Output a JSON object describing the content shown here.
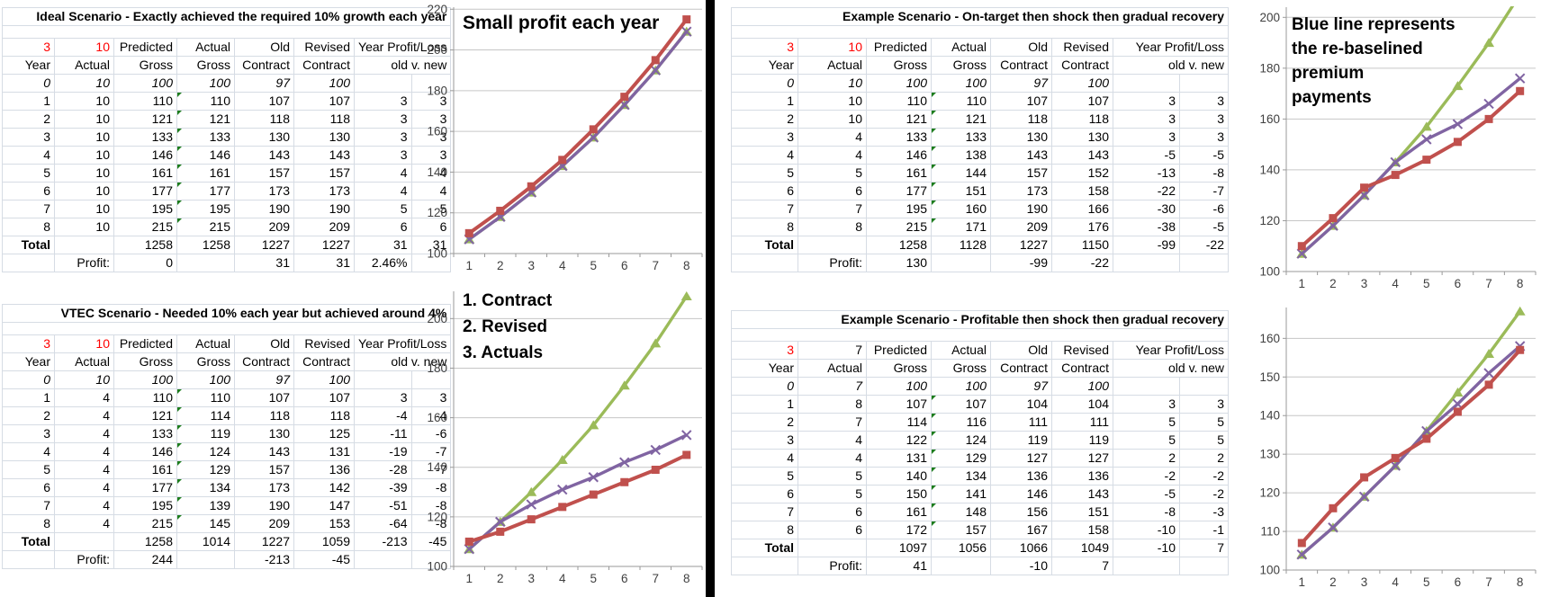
{
  "colors": {
    "actual": "#c0504d",
    "revised": "#8064a2",
    "contract": "#9bbb59",
    "red_text": "#ff0000",
    "grid": "#c6c6c6",
    "axis": "#9a9a9a"
  },
  "tables": [
    {
      "id": "ideal",
      "title": "Ideal Scenario - Exactly achieved the required 10% growth each year",
      "corner": [
        {
          "v": "3",
          "red": true
        },
        {
          "v": "10",
          "red": true
        }
      ],
      "headers": {
        "row1": [
          "Predicted",
          "Actual",
          "Old",
          "Revised",
          "Year Profit/Loss"
        ],
        "row2": [
          "Year",
          "Actual",
          "Gross",
          "Gross",
          "Contract",
          "Contract",
          "old v. new"
        ]
      },
      "rows": [
        [
          "0",
          "10",
          "100",
          "100",
          "97",
          "100",
          "",
          ""
        ],
        [
          "1",
          "10",
          "110",
          "110",
          "107",
          "107",
          "3",
          "3"
        ],
        [
          "2",
          "10",
          "121",
          "121",
          "118",
          "118",
          "3",
          "3"
        ],
        [
          "3",
          "10",
          "133",
          "133",
          "130",
          "130",
          "3",
          "3"
        ],
        [
          "4",
          "10",
          "146",
          "146",
          "143",
          "143",
          "3",
          "3"
        ],
        [
          "5",
          "10",
          "161",
          "161",
          "157",
          "157",
          "4",
          "4"
        ],
        [
          "6",
          "10",
          "177",
          "177",
          "173",
          "173",
          "4",
          "4"
        ],
        [
          "7",
          "10",
          "195",
          "195",
          "190",
          "190",
          "5",
          "5"
        ],
        [
          "8",
          "10",
          "215",
          "215",
          "209",
          "209",
          "6",
          "6"
        ]
      ],
      "total": {
        "label": "Total",
        "values": [
          "1258",
          "1258",
          "1227",
          "1227",
          "31",
          "31"
        ]
      },
      "profit": {
        "label": "Profit:",
        "predicted": "0",
        "old": "31",
        "revised": "31",
        "extra": "2.46%"
      }
    },
    {
      "id": "vtec",
      "title": "VTEC Scenario - Needed 10% each year but achieved around 4%",
      "corner": [
        {
          "v": "3",
          "red": true
        },
        {
          "v": "10",
          "red": true
        }
      ],
      "headers": {
        "row1": [
          "Predicted",
          "Actual",
          "Old",
          "Revised",
          "Year Profit/Loss"
        ],
        "row2": [
          "Year",
          "Actual",
          "Gross",
          "Gross",
          "Contract",
          "Contract",
          "old v. new"
        ]
      },
      "rows": [
        [
          "0",
          "10",
          "100",
          "100",
          "97",
          "100",
          "",
          ""
        ],
        [
          "1",
          "4",
          "110",
          "110",
          "107",
          "107",
          "3",
          "3"
        ],
        [
          "2",
          "4",
          "121",
          "114",
          "118",
          "118",
          "-4",
          "-4"
        ],
        [
          "3",
          "4",
          "133",
          "119",
          "130",
          "125",
          "-11",
          "-6"
        ],
        [
          "4",
          "4",
          "146",
          "124",
          "143",
          "131",
          "-19",
          "-7"
        ],
        [
          "5",
          "4",
          "161",
          "129",
          "157",
          "136",
          "-28",
          "-7"
        ],
        [
          "6",
          "4",
          "177",
          "134",
          "173",
          "142",
          "-39",
          "-8"
        ],
        [
          "7",
          "4",
          "195",
          "139",
          "190",
          "147",
          "-51",
          "-8"
        ],
        [
          "8",
          "4",
          "215",
          "145",
          "209",
          "153",
          "-64",
          "-8"
        ]
      ],
      "total": {
        "label": "Total",
        "values": [
          "1258",
          "1014",
          "1227",
          "1059",
          "-213",
          "-45"
        ]
      },
      "profit": {
        "label": "Profit:",
        "predicted": "244",
        "old": "-213",
        "revised": "-45",
        "extra": ""
      }
    },
    {
      "id": "ontarget-shock",
      "title": "Example Scenario - On-target then shock then gradual recovery",
      "corner": [
        {
          "v": "3",
          "red": true
        },
        {
          "v": "10",
          "red": true
        }
      ],
      "headers": {
        "row1": [
          "Predicted",
          "Actual",
          "Old",
          "Revised",
          "Year Profit/Loss"
        ],
        "row2": [
          "Year",
          "Actual",
          "Gross",
          "Gross",
          "Contract",
          "Contract",
          "old v. new"
        ]
      },
      "rows": [
        [
          "0",
          "10",
          "100",
          "100",
          "97",
          "100",
          "",
          ""
        ],
        [
          "1",
          "10",
          "110",
          "110",
          "107",
          "107",
          "3",
          "3"
        ],
        [
          "2",
          "10",
          "121",
          "121",
          "118",
          "118",
          "3",
          "3"
        ],
        [
          "3",
          "4",
          "133",
          "133",
          "130",
          "130",
          "3",
          "3"
        ],
        [
          "4",
          "4",
          "146",
          "138",
          "143",
          "143",
          "-5",
          "-5"
        ],
        [
          "5",
          "5",
          "161",
          "144",
          "157",
          "152",
          "-13",
          "-8"
        ],
        [
          "6",
          "6",
          "177",
          "151",
          "173",
          "158",
          "-22",
          "-7"
        ],
        [
          "7",
          "7",
          "195",
          "160",
          "190",
          "166",
          "-30",
          "-6"
        ],
        [
          "8",
          "8",
          "215",
          "171",
          "209",
          "176",
          "-38",
          "-5"
        ]
      ],
      "total": {
        "label": "Total",
        "values": [
          "1258",
          "1128",
          "1227",
          "1150",
          "-99",
          "-22"
        ]
      },
      "profit": {
        "label": "Profit:",
        "predicted": "130",
        "old": "-99",
        "revised": "-22",
        "extra": ""
      }
    },
    {
      "id": "profitable-shock",
      "title": "Example Scenario - Profitable then shock then gradual recovery",
      "corner": [
        {
          "v": "3",
          "red": true
        },
        {
          "v": "7",
          "red": false
        }
      ],
      "headers": {
        "row1": [
          "Predicted",
          "Actual",
          "Old",
          "Revised",
          "Year Profit/Loss"
        ],
        "row2": [
          "Year",
          "Actual",
          "Gross",
          "Gross",
          "Contract",
          "Contract",
          "old v. new"
        ]
      },
      "rows": [
        [
          "0",
          "7",
          "100",
          "100",
          "97",
          "100",
          "",
          ""
        ],
        [
          "1",
          "8",
          "107",
          "107",
          "104",
          "104",
          "3",
          "3"
        ],
        [
          "2",
          "7",
          "114",
          "116",
          "111",
          "111",
          "5",
          "5"
        ],
        [
          "3",
          "4",
          "122",
          "124",
          "119",
          "119",
          "5",
          "5"
        ],
        [
          "4",
          "4",
          "131",
          "129",
          "127",
          "127",
          "2",
          "2"
        ],
        [
          "5",
          "5",
          "140",
          "134",
          "136",
          "136",
          "-2",
          "-2"
        ],
        [
          "6",
          "5",
          "150",
          "141",
          "146",
          "143",
          "-5",
          "-2"
        ],
        [
          "7",
          "6",
          "161",
          "148",
          "156",
          "151",
          "-8",
          "-3"
        ],
        [
          "8",
          "6",
          "172",
          "157",
          "167",
          "158",
          "-10",
          "-1"
        ]
      ],
      "total": {
        "label": "Total",
        "values": [
          "1097",
          "1056",
          "1066",
          "1049",
          "-10",
          "7"
        ]
      },
      "profit": {
        "label": "Profit:",
        "predicted": "41",
        "old": "-10",
        "revised": "7",
        "extra": ""
      }
    }
  ],
  "chart_data": [
    {
      "type": "line",
      "annotation": [
        "Small profit each year"
      ],
      "x": [
        1,
        2,
        3,
        4,
        5,
        6,
        7,
        8
      ],
      "ylim": [
        100,
        221
      ],
      "yticks": [
        100,
        120,
        140,
        160,
        180,
        200,
        220
      ],
      "series": [
        {
          "name": "Old Contract",
          "color": "contract",
          "marker": "triangle",
          "values": [
            107,
            118,
            130,
            143,
            157,
            173,
            190,
            209
          ]
        },
        {
          "name": "Revised Contract",
          "color": "revised",
          "marker": "x",
          "values": [
            107,
            118,
            130,
            143,
            157,
            173,
            190,
            209
          ]
        },
        {
          "name": "Actual Gross",
          "color": "actual",
          "marker": "square",
          "values": [
            110,
            121,
            133,
            146,
            161,
            177,
            195,
            215
          ]
        }
      ]
    },
    {
      "type": "line",
      "annotation": [
        "Blue line represents",
        "the re-baselined",
        "premium",
        "payments"
      ],
      "x": [
        1,
        2,
        3,
        4,
        5,
        6,
        7,
        8
      ],
      "ylim": [
        100,
        204
      ],
      "yticks": [
        100,
        120,
        140,
        160,
        180,
        200
      ],
      "series": [
        {
          "name": "Old Contract",
          "color": "contract",
          "marker": "triangle",
          "values": [
            107,
            118,
            130,
            143,
            157,
            173,
            190,
            209
          ]
        },
        {
          "name": "Revised Contract",
          "color": "revised",
          "marker": "x",
          "values": [
            107,
            118,
            130,
            143,
            152,
            158,
            166,
            176
          ]
        },
        {
          "name": "Actual Gross",
          "color": "actual",
          "marker": "square",
          "values": [
            110,
            121,
            133,
            138,
            144,
            151,
            160,
            171
          ]
        }
      ]
    },
    {
      "type": "line",
      "annotation": [
        "1. Contract",
        "2. Revised",
        "3. Actuals"
      ],
      "x": [
        1,
        2,
        3,
        4,
        5,
        6,
        7,
        8
      ],
      "ylim": [
        100,
        211
      ],
      "yticks": [
        100,
        120,
        140,
        160,
        180,
        200
      ],
      "series": [
        {
          "name": "Old Contract",
          "color": "contract",
          "marker": "triangle",
          "values": [
            107,
            118,
            130,
            143,
            157,
            173,
            190,
            209
          ]
        },
        {
          "name": "Revised Contract",
          "color": "revised",
          "marker": "x",
          "values": [
            107,
            118,
            125,
            131,
            136,
            142,
            147,
            153
          ]
        },
        {
          "name": "Actual Gross",
          "color": "actual",
          "marker": "square",
          "values": [
            110,
            114,
            119,
            124,
            129,
            134,
            139,
            145
          ]
        }
      ]
    },
    {
      "type": "line",
      "annotation": [],
      "x": [
        1,
        2,
        3,
        4,
        5,
        6,
        7,
        8
      ],
      "ylim": [
        100,
        168
      ],
      "yticks": [
        100,
        110,
        120,
        130,
        140,
        150,
        160
      ],
      "series": [
        {
          "name": "Old Contract",
          "color": "contract",
          "marker": "triangle",
          "values": [
            104,
            111,
            119,
            127,
            136,
            146,
            156,
            167
          ]
        },
        {
          "name": "Revised Contract",
          "color": "revised",
          "marker": "x",
          "values": [
            104,
            111,
            119,
            127,
            136,
            143,
            151,
            158
          ]
        },
        {
          "name": "Actual Gross",
          "color": "actual",
          "marker": "square",
          "values": [
            107,
            116,
            124,
            129,
            134,
            141,
            148,
            157
          ]
        }
      ]
    }
  ]
}
